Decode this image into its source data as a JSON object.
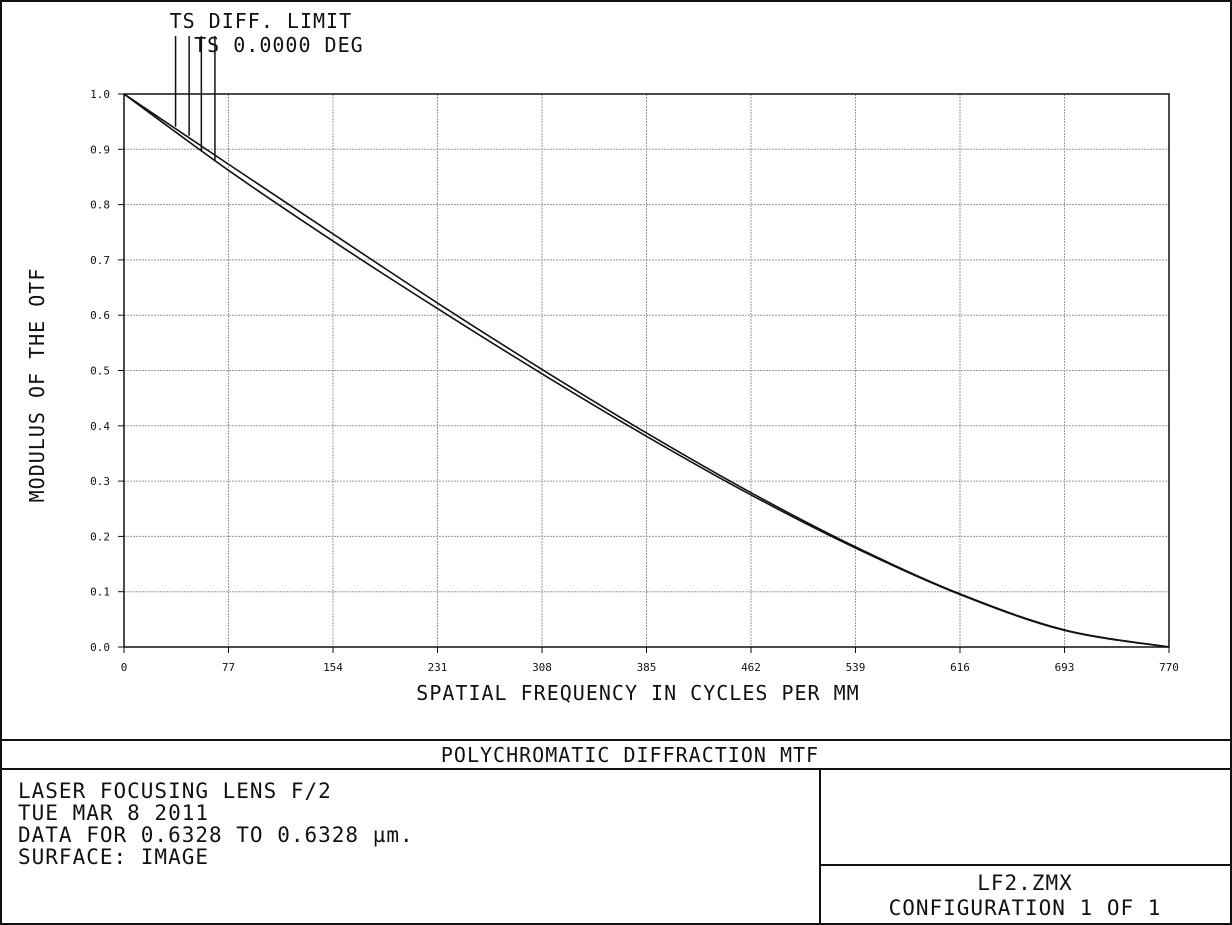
{
  "chart_data": {
    "type": "line",
    "title": "POLYCHROMATIC DIFFRACTION MTF",
    "xlabel": "SPATIAL FREQUENCY IN CYCLES PER MM",
    "ylabel": "MODULUS OF THE OTF",
    "xlim": [
      0,
      770
    ],
    "ylim": [
      0,
      1.0
    ],
    "xticks": [
      "0",
      "77",
      "154",
      "231",
      "308",
      "385",
      "462",
      "539",
      "616",
      "693",
      "770"
    ],
    "yticks": [
      "0.0",
      "0.1",
      "0.2",
      "0.3",
      "0.4",
      "0.5",
      "0.6",
      "0.7",
      "0.8",
      "0.9",
      "1.0"
    ],
    "grid": true,
    "legend": [
      "TS DIFF. LIMIT",
      "TS 0.0000 DEG"
    ],
    "series": [
      {
        "name": "TS DIFF. LIMIT",
        "x": [
          0,
          77,
          154,
          231,
          308,
          385,
          462,
          539,
          616,
          693,
          770
        ],
        "y": [
          1.0,
          0.873,
          0.747,
          0.622,
          0.502,
          0.387,
          0.279,
          0.181,
          0.096,
          0.031,
          0.0
        ]
      },
      {
        "name": "TS 0.0000 DEG",
        "x": [
          0,
          77,
          154,
          231,
          308,
          385,
          462,
          539,
          616,
          693,
          770
        ],
        "y": [
          1.0,
          0.862,
          0.734,
          0.612,
          0.494,
          0.381,
          0.275,
          0.179,
          0.095,
          0.03,
          0.0
        ]
      }
    ]
  },
  "info": {
    "lines": [
      "LASER FOCUSING LENS F/2",
      "TUE MAR 8 2011",
      "DATA FOR 0.6328 TO 0.6328 µm.",
      "SURFACE: IMAGE"
    ],
    "file": "LF2.ZMX",
    "configuration": "CONFIGURATION 1 OF 1"
  }
}
